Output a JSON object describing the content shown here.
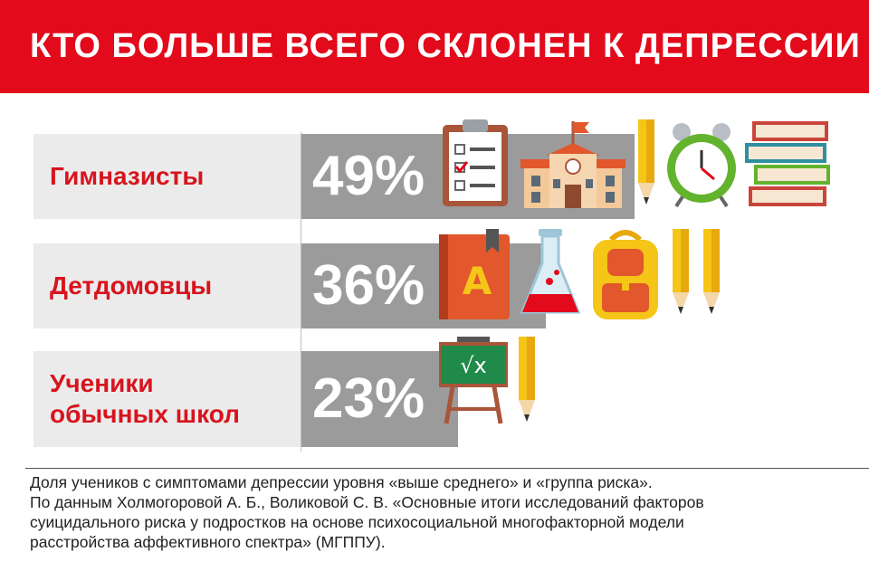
{
  "header": {
    "title": "КТО БОЛЬШЕ ВСЕГО СКЛОНЕН К ДЕПРЕССИИ",
    "color": "#e20a1b"
  },
  "chart_data": {
    "type": "bar",
    "orientation": "horizontal",
    "title": "КТО БОЛЬШЕ ВСЕГО СКЛОНЕН К ДЕПРЕССИИ",
    "categories": [
      "Гимназисты",
      "Детдомовцы",
      "Ученики обычных школ"
    ],
    "category_lines": [
      [
        "Гимназисты"
      ],
      [
        "Детдомовцы"
      ],
      [
        "Ученики",
        "обычных школ"
      ]
    ],
    "values": [
      49,
      36,
      23
    ],
    "value_labels": [
      "49%",
      "36%",
      "23%"
    ],
    "unit": "%",
    "bar_color": "#9b9b9b",
    "label_color": "#d7141e"
  },
  "footnote": [
    "Доля учеников с симптомами депрессии уровня «выше среднего» и «группа риска».",
    "По данным Холмогоровой А. Б., Воликовой С. В. «Основные итоги исследований факторов",
    "суицидального риска у подростков на основе психосоциальной многофакторной модели",
    "расстройства аффективного спектра» (МГППУ)."
  ],
  "icons": [
    [
      "clipboard-icon",
      "school-building-icon",
      "pencil-icon",
      "alarm-clock-icon",
      "books-stack-icon"
    ],
    [
      "alphabet-book-icon",
      "flask-icon",
      "backpack-icon",
      "pencil-icon",
      "pencil-icon"
    ],
    [
      "chalkboard-icon",
      "pencil-icon"
    ]
  ]
}
